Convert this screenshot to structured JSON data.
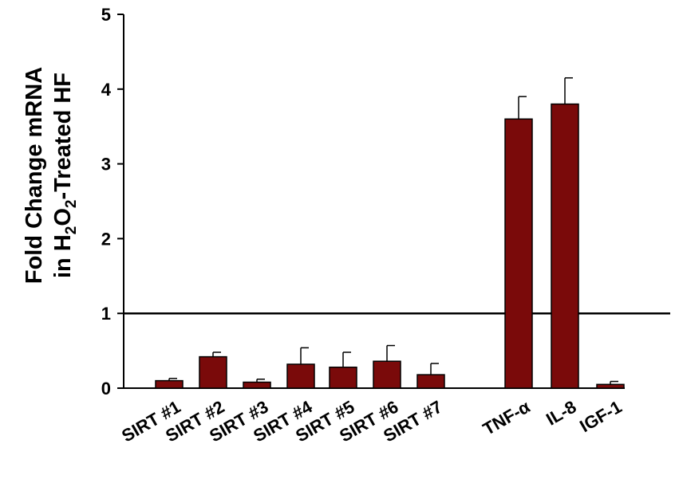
{
  "chart_data": {
    "type": "bar",
    "categories": [
      "SIRT #1",
      "SIRT #2",
      "SIRT #3",
      "SIRT #4",
      "SIRT #5",
      "SIRT #6",
      "SIRT #7",
      "TNF-α",
      "IL-8",
      "IGF-1"
    ],
    "values": [
      0.1,
      0.42,
      0.08,
      0.32,
      0.28,
      0.36,
      0.18,
      3.6,
      3.8,
      0.05
    ],
    "error_upper": [
      0.03,
      0.06,
      0.04,
      0.22,
      0.2,
      0.21,
      0.15,
      0.3,
      0.35,
      0.04
    ],
    "ylabel_line1": "Fold Change mRNA",
    "ylabel_line2": "in H2O2-Treated HF",
    "ylabel_line2_parts": [
      "in H",
      "2",
      "O",
      "2",
      "-Treated HF"
    ],
    "ylim": [
      0,
      5
    ],
    "yticks": [
      "0",
      "1",
      "2",
      "3",
      "4",
      "5"
    ],
    "reference_line": 1,
    "bar_color": "#7a0a0a",
    "grid": false,
    "legend": "none"
  }
}
